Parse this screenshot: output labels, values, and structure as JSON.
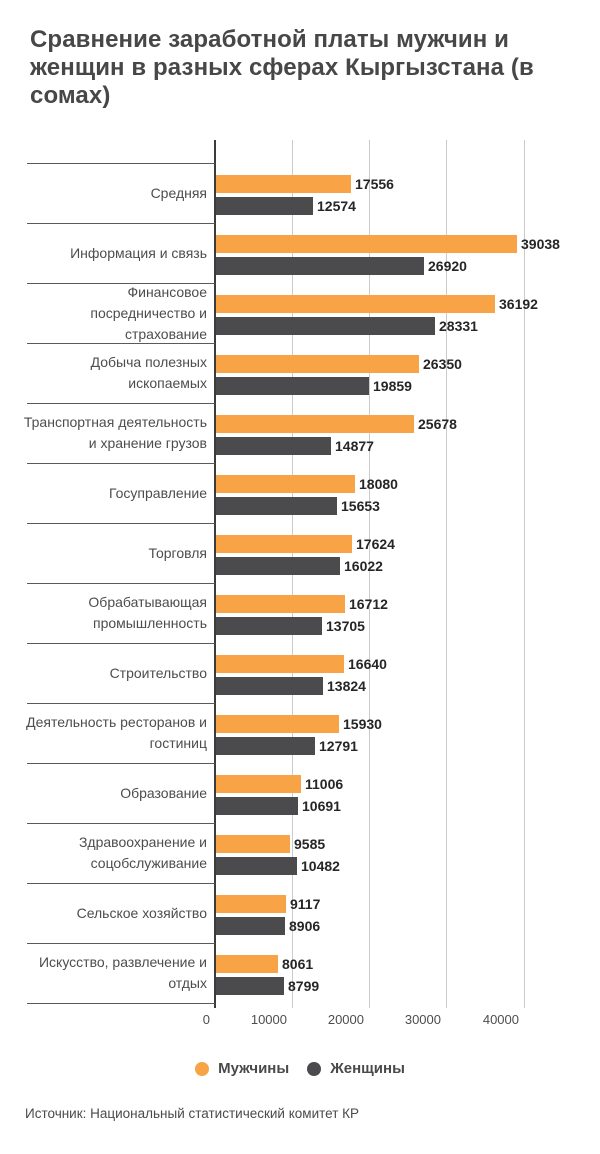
{
  "title": "Сравнение заработной платы мужчин и женщин в разных сферах Кыргызстана (в сомах)",
  "source": "Источник: Национальный статистический комитет КР",
  "legend": {
    "items": [
      {
        "label": "Мужчины",
        "color": "#F7A346"
      },
      {
        "label": "Женщины",
        "color": "#4B4B4D"
      }
    ]
  },
  "colors": {
    "men_bar": "#F7A346",
    "women_bar": "#4B4B4D",
    "title_text": "#474747",
    "axis_line": "#3c3c3c",
    "gridline": "#cbcbcb",
    "value_text": "#262626"
  },
  "chart_data": {
    "type": "bar",
    "orientation": "horizontal",
    "title": "Сравнение заработной платы мужчин и женщин в разных сферах Кыргызстана (в сомах)",
    "xlabel": "",
    "ylabel": "",
    "xlim": [
      0,
      40000
    ],
    "x_ticks": [
      0,
      10000,
      20000,
      30000,
      40000
    ],
    "grid": true,
    "legend_position": "bottom",
    "categories": [
      "Средняя",
      "Информация и связь",
      "Финансовое посредничество и страхование",
      "Добыча полезных ископаемых",
      "Транспортная деятельность и хранение грузов",
      "Госуправление",
      "Торговля",
      "Обрабатывающая промышленность",
      "Строительство",
      "Деятельность ресторанов и гостиниц",
      "Образование",
      "Здравоохранение и соцобслуживание",
      "Сельское хозяйство",
      "Искусство, развлечение и отдых"
    ],
    "series": [
      {
        "name": "Мужчины",
        "color": "#F7A346",
        "values": [
          17556,
          39038,
          36192,
          26350,
          25678,
          18080,
          17624,
          16712,
          16640,
          15930,
          11006,
          9585,
          9117,
          8061
        ]
      },
      {
        "name": "Женщины",
        "color": "#4B4B4D",
        "values": [
          12574,
          26920,
          28331,
          19859,
          14877,
          15653,
          16022,
          13705,
          13824,
          12791,
          10691,
          10482,
          8906,
          8799
        ]
      }
    ]
  }
}
